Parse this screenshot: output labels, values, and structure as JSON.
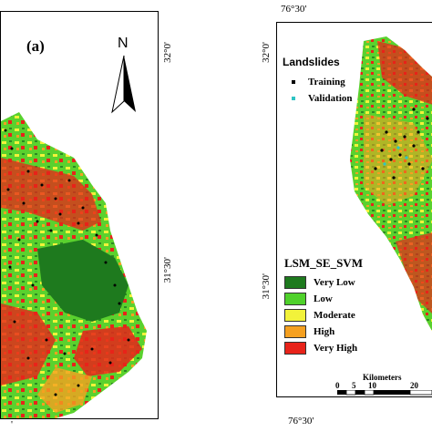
{
  "left_panel": {
    "label": "(a)",
    "north_label": "N",
    "lat_top": "32°0'",
    "lat_mid": "31°30'",
    "bottom_partial": "'"
  },
  "right_panel": {
    "lon_top": "76°30'",
    "lon_bottom": "76°30'",
    "lat_top": "32°0'",
    "lat_mid": "31°30'",
    "landslides": {
      "title": "Landslides",
      "items": [
        {
          "label": "Training",
          "color": "#000000"
        },
        {
          "label": "Validation",
          "color": "#2ec4c4"
        }
      ]
    },
    "susceptibility": {
      "title": "LSM_SE_SVM",
      "items": [
        {
          "label": "Very Low",
          "color": "#1e7a1e"
        },
        {
          "label": "Low",
          "color": "#4fd12b"
        },
        {
          "label": "Moderate",
          "color": "#f2f23a"
        },
        {
          "label": "High",
          "color": "#f5a020"
        },
        {
          "label": "Very High",
          "color": "#e8231a"
        }
      ]
    },
    "scalebar": {
      "unit": "Kilometers",
      "ticks": [
        "0",
        "5",
        "10",
        "20"
      ]
    }
  }
}
